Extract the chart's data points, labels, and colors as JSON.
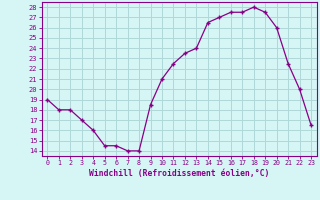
{
  "x": [
    0,
    1,
    2,
    3,
    4,
    5,
    6,
    7,
    8,
    9,
    10,
    11,
    12,
    13,
    14,
    15,
    16,
    17,
    18,
    19,
    20,
    21,
    22,
    23
  ],
  "y": [
    19,
    18,
    18,
    17,
    16,
    14.5,
    14.5,
    14,
    14,
    18.5,
    21,
    22.5,
    23.5,
    24,
    26.5,
    27,
    27.5,
    27.5,
    28,
    27.5,
    26,
    22.5,
    20,
    16.5
  ],
  "line_color": "#880088",
  "marker": "+",
  "bg_color": "#d6f5f5",
  "grid_color": "#b0d8d8",
  "xlabel": "Windchill (Refroidissement éolien,°C)",
  "xlabel_color": "#880088",
  "xtick_labels": [
    "0",
    "1",
    "2",
    "3",
    "4",
    "5",
    "6",
    "7",
    "8",
    "9",
    "10",
    "11",
    "12",
    "13",
    "14",
    "15",
    "16",
    "17",
    "18",
    "19",
    "20",
    "21",
    "22",
    "23"
  ],
  "ytick_labels": [
    "14",
    "15",
    "16",
    "17",
    "18",
    "19",
    "20",
    "21",
    "22",
    "23",
    "24",
    "25",
    "26",
    "27",
    "28"
  ],
  "ylim": [
    13.5,
    28.5
  ],
  "xlim": [
    -0.5,
    23.5
  ],
  "tick_color": "#880088",
  "axis_color": "#880088",
  "font_size": 6.5
}
